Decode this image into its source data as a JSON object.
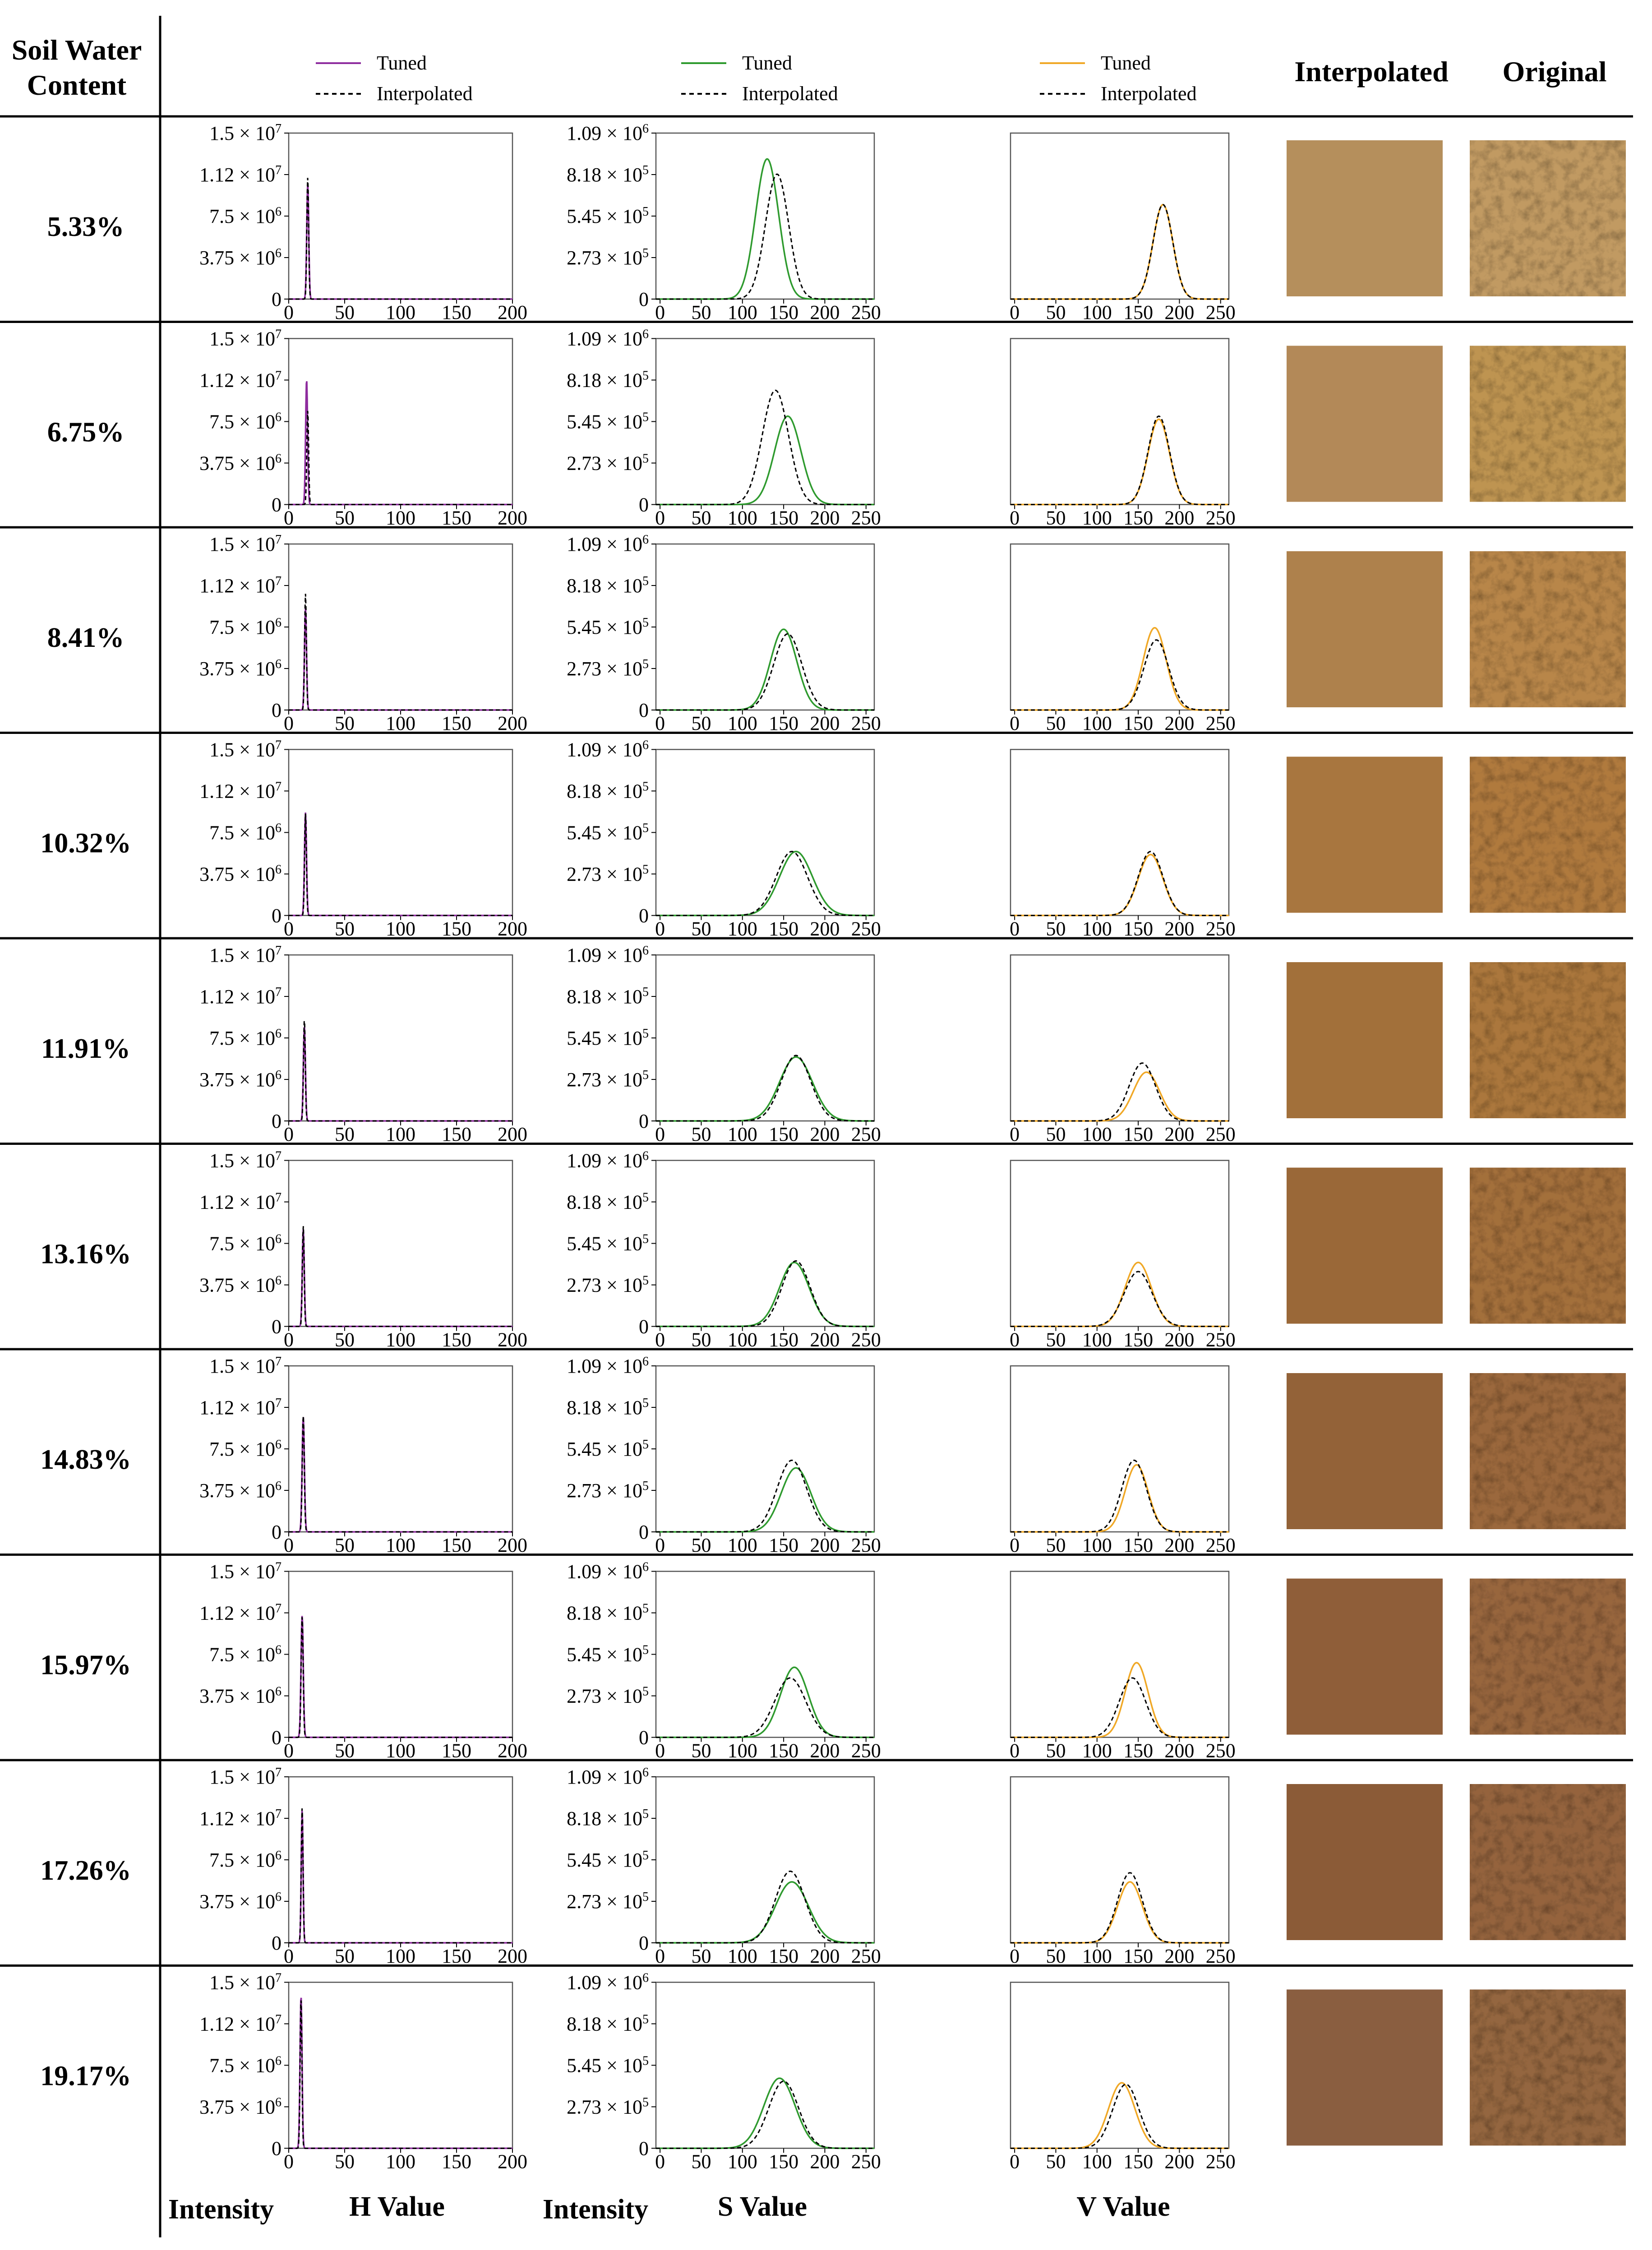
{
  "header": {
    "row_title_line1": "Soil Water",
    "row_title_line2": "Content",
    "interpolated": "Interpolated",
    "original": "Original"
  },
  "legends": {
    "h": [
      "Tuned",
      "Interpolated"
    ],
    "s": [
      "Tuned",
      "Interpolated"
    ],
    "v": [
      "Tuned",
      "Interpolated"
    ]
  },
  "footer": {
    "intensity_h": "Intensity",
    "h_value": "H Value",
    "intensity_s": "Intensity",
    "s_value": "S Value",
    "v_value": "V Value"
  },
  "colors": {
    "h_tuned": "#8e2c9e",
    "s_tuned": "#2e9a2e",
    "v_tuned": "#f0a826",
    "interpolated": "#000000"
  },
  "chart_data": [
    {
      "type": "line",
      "panel": "H",
      "x_ticks": [
        "0",
        "50",
        "100",
        "150",
        "200"
      ],
      "xlim": [
        0,
        200
      ],
      "y_ticks": [
        "0",
        "3.75 × 10^6",
        "7.5 × 10^6",
        "1.12 × 10^7",
        "1.5 × 10^7"
      ],
      "ylim": [
        0,
        15000000
      ],
      "series": [
        {
          "name": "Tuned",
          "rows": [
            {
              "mu": 17,
              "sigma": 0.9,
              "peak": 10400000
            },
            {
              "mu": 16,
              "sigma": 0.9,
              "peak": 11300000
            },
            {
              "mu": 15,
              "sigma": 0.9,
              "peak": 9200000
            },
            {
              "mu": 15,
              "sigma": 0.9,
              "peak": 9300000
            },
            {
              "mu": 14,
              "sigma": 0.9,
              "peak": 8600000
            },
            {
              "mu": 13,
              "sigma": 0.9,
              "peak": 8800000
            },
            {
              "mu": 13,
              "sigma": 1.0,
              "peak": 10400000
            },
            {
              "mu": 12,
              "sigma": 1.0,
              "peak": 11000000
            },
            {
              "mu": 12,
              "sigma": 0.8,
              "peak": 12000000
            },
            {
              "mu": 11,
              "sigma": 0.9,
              "peak": 13800000
            }
          ]
        },
        {
          "name": "Interpolated",
          "rows": [
            {
              "mu": 17,
              "sigma": 0.8,
              "peak": 11000000
            },
            {
              "mu": 17,
              "sigma": 0.8,
              "peak": 8500000
            },
            {
              "mu": 15,
              "sigma": 0.8,
              "peak": 10500000
            },
            {
              "mu": 15,
              "sigma": 0.8,
              "peak": 9200000
            },
            {
              "mu": 14,
              "sigma": 0.8,
              "peak": 9200000
            },
            {
              "mu": 13,
              "sigma": 0.8,
              "peak": 9100000
            },
            {
              "mu": 13,
              "sigma": 0.9,
              "peak": 10500000
            },
            {
              "mu": 12,
              "sigma": 0.9,
              "peak": 10900000
            },
            {
              "mu": 12,
              "sigma": 0.8,
              "peak": 12200000
            },
            {
              "mu": 11,
              "sigma": 0.8,
              "peak": 13600000
            }
          ]
        }
      ]
    },
    {
      "type": "line",
      "panel": "S",
      "x_ticks": [
        "0",
        "50",
        "100",
        "150",
        "200",
        "250"
      ],
      "xlim": [
        -5,
        260
      ],
      "y_ticks": [
        "0",
        "2.73 × 10^5",
        "5.45 × 10^5",
        "8.18 × 10^5",
        "1.09 × 10^6"
      ],
      "ylim": [
        0,
        1090000
      ],
      "series": [
        {
          "name": "Tuned",
          "rows": [
            {
              "mu": 130,
              "sigma": 14,
              "peak": 920000
            },
            {
              "mu": 155,
              "sigma": 16,
              "peak": 580000
            },
            {
              "mu": 150,
              "sigma": 16,
              "peak": 530000
            },
            {
              "mu": 165,
              "sigma": 20,
              "peak": 420000
            },
            {
              "mu": 165,
              "sigma": 20,
              "peak": 420000
            },
            {
              "mu": 163,
              "sigma": 18,
              "peak": 420000
            },
            {
              "mu": 165,
              "sigma": 18,
              "peak": 420000
            },
            {
              "mu": 163,
              "sigma": 17,
              "peak": 460000
            },
            {
              "mu": 160,
              "sigma": 20,
              "peak": 400000
            },
            {
              "mu": 145,
              "sigma": 19,
              "peak": 460000
            }
          ]
        },
        {
          "name": "Interpolated",
          "rows": [
            {
              "mu": 142,
              "sigma": 14,
              "peak": 820000
            },
            {
              "mu": 140,
              "sigma": 16,
              "peak": 750000
            },
            {
              "mu": 155,
              "sigma": 17,
              "peak": 500000
            },
            {
              "mu": 160,
              "sigma": 19,
              "peak": 420000
            },
            {
              "mu": 165,
              "sigma": 18,
              "peak": 430000
            },
            {
              "mu": 165,
              "sigma": 17,
              "peak": 430000
            },
            {
              "mu": 160,
              "sigma": 18,
              "peak": 470000
            },
            {
              "mu": 158,
              "sigma": 19,
              "peak": 390000
            },
            {
              "mu": 158,
              "sigma": 18,
              "peak": 470000
            },
            {
              "mu": 150,
              "sigma": 18,
              "peak": 440000
            }
          ]
        }
      ]
    },
    {
      "type": "line",
      "panel": "V",
      "x_ticks": [
        "0",
        "50",
        "100",
        "150",
        "200",
        "250"
      ],
      "xlim": [
        -5,
        260
      ],
      "y_ticks": [],
      "ylim": [
        0,
        1090000
      ],
      "series": [
        {
          "name": "Tuned",
          "rows": [
            {
              "mu": 180,
              "sigma": 12,
              "peak": 620000
            },
            {
              "mu": 175,
              "sigma": 13,
              "peak": 560000
            },
            {
              "mu": 170,
              "sigma": 14,
              "peak": 540000
            },
            {
              "mu": 165,
              "sigma": 15,
              "peak": 400000
            },
            {
              "mu": 160,
              "sigma": 16,
              "peak": 320000
            },
            {
              "mu": 150,
              "sigma": 16,
              "peak": 420000
            },
            {
              "mu": 148,
              "sigma": 14,
              "peak": 440000
            },
            {
              "mu": 148,
              "sigma": 14,
              "peak": 490000
            },
            {
              "mu": 140,
              "sigma": 15,
              "peak": 400000
            },
            {
              "mu": 130,
              "sigma": 16,
              "peak": 430000
            }
          ]
        },
        {
          "name": "Interpolated",
          "rows": [
            {
              "mu": 180,
              "sigma": 12,
              "peak": 620000
            },
            {
              "mu": 175,
              "sigma": 13,
              "peak": 580000
            },
            {
              "mu": 172,
              "sigma": 15,
              "peak": 460000
            },
            {
              "mu": 165,
              "sigma": 15,
              "peak": 420000
            },
            {
              "mu": 155,
              "sigma": 16,
              "peak": 380000
            },
            {
              "mu": 150,
              "sigma": 17,
              "peak": 360000
            },
            {
              "mu": 145,
              "sigma": 15,
              "peak": 470000
            },
            {
              "mu": 143,
              "sigma": 16,
              "peak": 390000
            },
            {
              "mu": 140,
              "sigma": 15,
              "peak": 460000
            },
            {
              "mu": 135,
              "sigma": 16,
              "peak": 420000
            }
          ]
        }
      ]
    }
  ],
  "rows": [
    {
      "label": "5.33%",
      "interp_color": "#b58f5c",
      "orig_color": "#c19a62"
    },
    {
      "label": "6.75%",
      "interp_color": "#b38958",
      "orig_color": "#be9451"
    },
    {
      "label": "8.41%",
      "interp_color": "#ae814c",
      "orig_color": "#b88649"
    },
    {
      "label": "10.32%",
      "interp_color": "#a8763f",
      "orig_color": "#b07a3e"
    },
    {
      "label": "11.91%",
      "interp_color": "#a2703a",
      "orig_color": "#ab773c"
    },
    {
      "label": "13.16%",
      "interp_color": "#9a6838",
      "orig_color": "#a36f3b"
    },
    {
      "label": "14.83%",
      "interp_color": "#936238",
      "orig_color": "#9b683c"
    },
    {
      "label": "15.97%",
      "interp_color": "#8f5e39",
      "orig_color": "#98663e"
    },
    {
      "label": "17.26%",
      "interp_color": "#8b5b37",
      "orig_color": "#95643e"
    },
    {
      "label": "19.17%",
      "interp_color": "#8a5e40",
      "orig_color": "#94663f"
    }
  ]
}
